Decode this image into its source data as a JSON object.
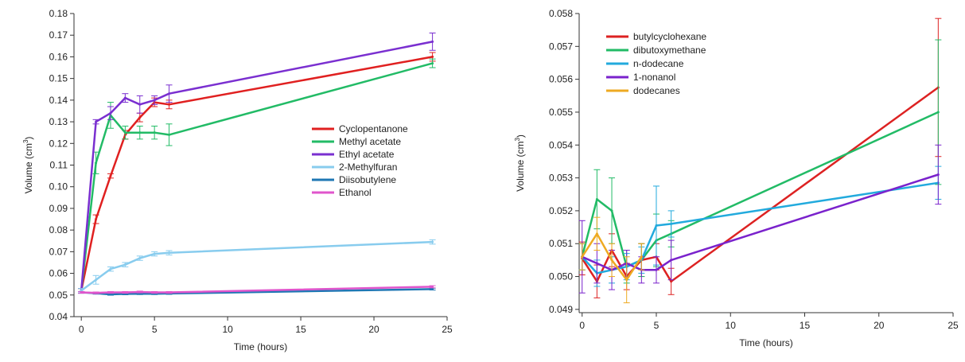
{
  "chart_data": [
    {
      "type": "line",
      "xlabel": "Time (hours)",
      "ylabel": "Volume (cm",
      "ylabel_sup": "3",
      "ylabel_end": ")",
      "xlim": [
        -0.5,
        25
      ],
      "ylim": [
        0.04,
        0.18
      ],
      "xticks": [
        0,
        5,
        10,
        15,
        20,
        25
      ],
      "yticks": [
        0.04,
        0.05,
        0.06,
        0.07,
        0.08,
        0.09,
        0.1,
        0.11,
        0.12,
        0.13,
        0.14,
        0.15,
        0.16,
        0.17,
        0.18
      ],
      "ytick_labels": [
        "0.04",
        "0.05",
        "0.06",
        "0.07",
        "0.08",
        "0.09",
        "0.10",
        "0.11",
        "0.12",
        "0.13",
        "0.14",
        "0.15",
        "0.16",
        "0.17",
        "0.18"
      ],
      "grid": false,
      "legend_position": "center-right",
      "series": [
        {
          "name": "Cyclopentanone",
          "color": "#e02020",
          "x": [
            0,
            1,
            2,
            3,
            4,
            5,
            6,
            24
          ],
          "y": [
            0.052,
            0.085,
            0.105,
            0.124,
            0.132,
            0.139,
            0.138,
            0.16
          ],
          "err": [
            0.001,
            0.002,
            0.001,
            0.002,
            0.002,
            0.002,
            0.002,
            0.002
          ]
        },
        {
          "name": "Methyl acetate",
          "color": "#22bb66",
          "x": [
            0,
            1,
            2,
            3,
            4,
            5,
            6,
            24
          ],
          "y": [
            0.052,
            0.111,
            0.133,
            0.125,
            0.125,
            0.125,
            0.124,
            0.157
          ],
          "err": [
            0.001,
            0.005,
            0.006,
            0.003,
            0.003,
            0.003,
            0.005,
            0.002
          ]
        },
        {
          "name": "Ethyl acetate",
          "color": "#7a2fd0",
          "x": [
            0,
            1,
            2,
            3,
            4,
            5,
            6,
            24
          ],
          "y": [
            0.052,
            0.13,
            0.134,
            0.141,
            0.138,
            0.14,
            0.143,
            0.167
          ],
          "err": [
            0.001,
            0.001,
            0.003,
            0.002,
            0.004,
            0.002,
            0.004,
            0.004
          ]
        },
        {
          "name": "2-Methylfuran",
          "color": "#88ccee",
          "x": [
            0,
            1,
            2,
            3,
            4,
            5,
            6,
            24
          ],
          "y": [
            0.052,
            0.057,
            0.062,
            0.064,
            0.067,
            0.069,
            0.0695,
            0.0745
          ],
          "err": [
            0.001,
            0.002,
            0.001,
            0.001,
            0.001,
            0.001,
            0.001,
            0.001
          ]
        },
        {
          "name": "Diisobutylene",
          "color": "#1f77b4",
          "x": [
            0,
            1,
            2,
            3,
            4,
            5,
            6,
            24
          ],
          "y": [
            0.0512,
            0.0508,
            0.0503,
            0.0505,
            0.0506,
            0.0506,
            0.0507,
            0.0527
          ],
          "err": [
            0.0004,
            0.0004,
            0.0004,
            0.0004,
            0.0004,
            0.0004,
            0.0004,
            0.0004
          ]
        },
        {
          "name": "Ethanol",
          "color": "#e055cc",
          "x": [
            0,
            1,
            2,
            3,
            4,
            5,
            6,
            24
          ],
          "y": [
            0.0512,
            0.051,
            0.0512,
            0.0512,
            0.0514,
            0.0512,
            0.0512,
            0.0538
          ],
          "err": [
            0.0004,
            0.0004,
            0.0004,
            0.0004,
            0.0004,
            0.0004,
            0.0004,
            0.0005
          ]
        }
      ]
    },
    {
      "type": "line",
      "xlabel": "Time (hours)",
      "ylabel": "Volume (cm",
      "ylabel_sup": "3",
      "ylabel_end": ")",
      "xlim": [
        -0.2,
        25
      ],
      "ylim": [
        0.0489,
        0.058
      ],
      "xticks": [
        0,
        5,
        10,
        15,
        20,
        25
      ],
      "yticks": [
        0.049,
        0.05,
        0.051,
        0.052,
        0.053,
        0.054,
        0.055,
        0.056,
        0.057,
        0.058
      ],
      "ytick_labels": [
        "0.049",
        "0.050",
        "0.051",
        "0.052",
        "0.053",
        "0.054",
        "0.055",
        "0.056",
        "0.057",
        "0.058"
      ],
      "grid": false,
      "legend_position": "top-left",
      "series": [
        {
          "name": "butylcyclohexane",
          "color": "#dd2222",
          "x": [
            0,
            1,
            2,
            3,
            4,
            5,
            6,
            24
          ],
          "y": [
            0.05055,
            0.04985,
            0.0508,
            0.05,
            0.0505,
            0.0506,
            0.04985,
            0.05575
          ],
          "err": [
            0.0005,
            0.0005,
            0.0005,
            0.0004,
            0.0005,
            0.0004,
            0.0004,
            0.0021
          ]
        },
        {
          "name": "dibutoxymethane",
          "color": "#22bb66",
          "x": [
            0,
            1,
            2,
            3,
            4,
            5,
            6,
            24
          ],
          "y": [
            0.0506,
            0.05235,
            0.052,
            0.0503,
            0.0505,
            0.0511,
            0.0513,
            0.055
          ],
          "err": [
            0.0004,
            0.0009,
            0.001,
            0.0005,
            0.0005,
            0.0008,
            0.0004,
            0.0022
          ]
        },
        {
          "name": "n-dodecane",
          "color": "#22aadd",
          "x": [
            0,
            1,
            2,
            3,
            4,
            5,
            6,
            24
          ],
          "y": [
            0.0506,
            0.0501,
            0.0502,
            0.0503,
            0.0505,
            0.05155,
            0.0516,
            0.05285
          ],
          "err": [
            0.0004,
            0.0004,
            0.0004,
            0.0004,
            0.0004,
            0.0012,
            0.0004,
            0.0005
          ]
        },
        {
          "name": "1-nonanol",
          "color": "#7a22cc",
          "x": [
            0,
            1,
            2,
            3,
            4,
            5,
            6,
            24
          ],
          "y": [
            0.0506,
            0.0504,
            0.0502,
            0.0504,
            0.0502,
            0.0502,
            0.0505,
            0.0531
          ],
          "err": [
            0.0011,
            0.0006,
            0.0006,
            0.0004,
            0.0004,
            0.0004,
            0.0006,
            0.0009
          ]
        },
        {
          "name": "dodecanes",
          "color": "#eeaa22",
          "x": [
            0,
            1,
            2,
            3,
            4
          ],
          "y": [
            0.0506,
            0.0513,
            0.0505,
            0.0499,
            0.0506
          ],
          "err": [
            0.0004,
            0.0005,
            0.0005,
            0.0007,
            0.0004
          ]
        }
      ]
    }
  ]
}
